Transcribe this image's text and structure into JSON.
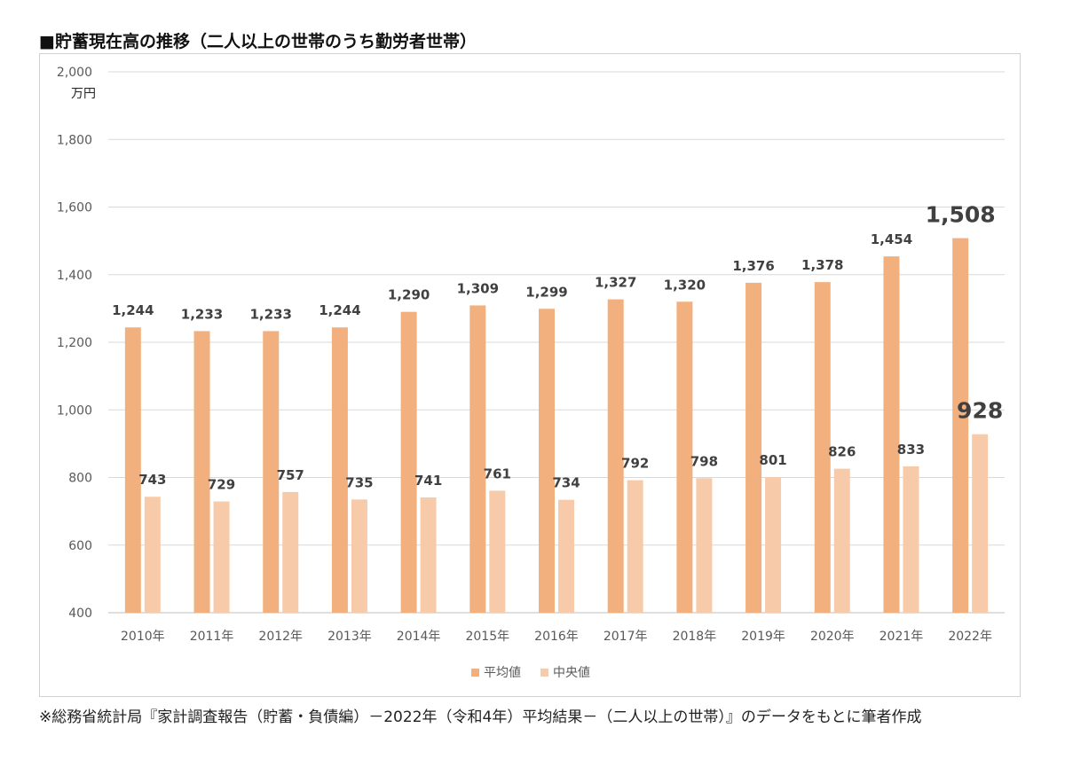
{
  "title": "■貯蓄現在高の推移（二人以上の世帯のうち勤労者世帯）",
  "source_note": "※総務省統計局『家計調査報告（貯蓄・負債編）－2022年（令和4年）平均結果－（二人以上の世帯）』のデータをもとに筆者作成",
  "colors": {
    "mean": "#F2B07E",
    "median": "#F7CBAA",
    "grid": "#d9d9d9"
  },
  "chart_data": {
    "type": "bar",
    "title": "",
    "unit": "万円",
    "ylim": [
      400,
      2000
    ],
    "yticks": [
      400,
      600,
      800,
      1000,
      1200,
      1400,
      1600,
      1800,
      2000
    ],
    "ytick_labels": [
      "400",
      "600",
      "800",
      "1,000",
      "1,200",
      "1,400",
      "1,600",
      "1,800",
      "2,000"
    ],
    "categories": [
      "2010年",
      "2011年",
      "2012年",
      "2013年",
      "2014年",
      "2015年",
      "2016年",
      "2017年",
      "2018年",
      "2019年",
      "2020年",
      "2021年",
      "2022年"
    ],
    "series": [
      {
        "name": "平均値",
        "values": [
          1244,
          1233,
          1233,
          1244,
          1290,
          1309,
          1299,
          1327,
          1320,
          1376,
          1378,
          1454,
          1508
        ],
        "labels": [
          "1,244",
          "1,233",
          "1,233",
          "1,244",
          "1,290",
          "1,309",
          "1,299",
          "1,327",
          "1,320",
          "1,376",
          "1,378",
          "1,454",
          "1,508"
        ]
      },
      {
        "name": "中央値",
        "values": [
          743,
          729,
          757,
          735,
          741,
          761,
          734,
          792,
          798,
          801,
          826,
          833,
          928
        ],
        "labels": [
          "743",
          "729",
          "757",
          "735",
          "741",
          "761",
          "734",
          "792",
          "798",
          "801",
          "826",
          "833",
          "928"
        ]
      }
    ],
    "grid": true,
    "legend": "bottom-center"
  }
}
